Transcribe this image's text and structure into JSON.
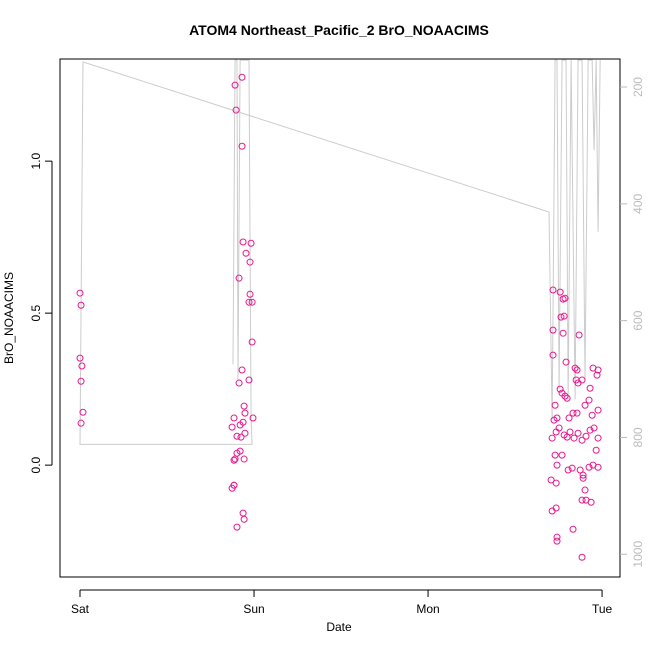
{
  "chart_data": {
    "type": "scatter",
    "title": "ATOM4 Northeast_Pacific_2 BrO_NOAACIMS",
    "xlabel": "Date",
    "ylabel": "BrO_NOAACIMS",
    "xlim": [
      -0.115,
      3.103
    ],
    "xticks": [
      {
        "value": 0,
        "label": "Sat"
      },
      {
        "value": 1,
        "label": "Sun"
      },
      {
        "value": 2,
        "label": "Mon"
      },
      {
        "value": 3,
        "label": "Tue"
      }
    ],
    "ylim": [
      -0.368,
      1.336
    ],
    "yticks": [
      {
        "value": 0,
        "label": "0.0"
      },
      0.5,
      {
        "value": 1,
        "label": "1.0"
      }
    ],
    "y2lim": [
      1039,
      152
    ],
    "y2ticks": [
      200,
      400,
      600,
      800,
      1000
    ],
    "y2color": "#bbbbbb",
    "series": [
      {
        "type": "scatter",
        "color": "#e6198f",
        "x": [
          0,
          0.006,
          0,
          0.011,
          0.006,
          0.017,
          0.006,
          0.891,
          0.897,
          0.931,
          0.931,
          0.937,
          0.983,
          0.954,
          0.977,
          0.914,
          0.977,
          0.989,
          0.971,
          0.989,
          0.931,
          0.914,
          0.971,
          0.943,
          0.948,
          0.885,
          0.994,
          0.874,
          0.92,
          0.937,
          0.948,
          0.902,
          0.925,
          0.92,
          0.902,
          0.943,
          0.885,
          0.891,
          0.885,
          0.874,
          0.885,
          0.937,
          0.943,
          0.902,
          2.718,
          2.759,
          2.776,
          2.787,
          2.718,
          2.764,
          2.782,
          2.776,
          2.868,
          2.718,
          2.793,
          2.845,
          2.856,
          2.948,
          2.977,
          2.759,
          2.77,
          2.787,
          2.799,
          2.851,
          2.862,
          2.885,
          2.931,
          2.971,
          2.73,
          2.724,
          2.741,
          2.81,
          2.833,
          2.856,
          2.902,
          2.925,
          2.943,
          2.977,
          2.713,
          2.736,
          2.753,
          2.782,
          2.799,
          2.816,
          2.839,
          2.862,
          2.885,
          2.908,
          2.931,
          2.954,
          2.977,
          2.966,
          2.73,
          2.741,
          2.77,
          2.805,
          2.828,
          2.874,
          2.891,
          2.925,
          2.948,
          2.977,
          2.707,
          2.736,
          2.891,
          2.902,
          2.885,
          2.908,
          2.937,
          2.736,
          2.713,
          2.741,
          2.741,
          2.833,
          2.885
        ],
        "values": [
          0.566,
          0.526,
          0.352,
          0.326,
          0.276,
          0.174,
          0.138,
          1.25,
          1.168,
          1.276,
          1.049,
          0.734,
          0.73,
          0.697,
          0.668,
          0.615,
          0.562,
          0.536,
          0.536,
          0.405,
          0.313,
          0.27,
          0.28,
          0.194,
          0.171,
          0.155,
          0.155,
          0.125,
          0.132,
          0.141,
          0.105,
          0.095,
          0.092,
          0.046,
          0.039,
          0.02,
          0.016,
          0.02,
          -0.066,
          -0.076,
          -0.066,
          -0.158,
          -0.178,
          -0.204,
          0.576,
          0.569,
          0.546,
          0.549,
          0.444,
          0.487,
          0.49,
          0.434,
          0.428,
          0.362,
          0.339,
          0.319,
          0.313,
          0.319,
          0.313,
          0.25,
          0.237,
          0.227,
          0.22,
          0.28,
          0.27,
          0.28,
          0.253,
          0.296,
          0.197,
          0.148,
          0.155,
          0.155,
          0.171,
          0.171,
          0.197,
          0.214,
          0.164,
          0.181,
          0.089,
          0.109,
          0.122,
          0.099,
          0.092,
          0.109,
          0.089,
          0.105,
          0.082,
          0.095,
          0.115,
          0.122,
          0.089,
          0.049,
          0.033,
          0,
          0.033,
          -0.016,
          -0.01,
          -0.016,
          -0.033,
          -0.007,
          0,
          -0.007,
          -0.049,
          -0.059,
          -0.043,
          -0.082,
          -0.115,
          -0.115,
          -0.122,
          -0.141,
          -0.151,
          -0.237,
          -0.25,
          -0.211,
          -0.303
        ]
      },
      {
        "type": "line",
        "axis": "y2",
        "color": "#cccccc",
        "x": [
          0.879,
          0.891,
          0.902,
          0.908,
          0.92,
          0.937,
          0.954,
          0.971,
          0.983,
          0.989,
          0,
          0.017,
          2.695,
          2.713,
          2.73,
          2.741,
          2.753,
          2.77,
          2.793,
          2.805,
          2.822,
          2.845,
          2.862,
          2.885,
          2.902,
          2.92,
          2.943,
          2.954,
          2.966,
          2.977,
          2.989
        ],
        "values": [
          675,
          154,
          154,
          701,
          154,
          154,
          154,
          154,
          769,
          812,
          812,
          157,
          414,
          769,
          154,
          154,
          718,
          154,
          154,
          735,
          154,
          735,
          154,
          154,
          701,
          154,
          154,
          308,
          154,
          448,
          154
        ]
      }
    ]
  }
}
